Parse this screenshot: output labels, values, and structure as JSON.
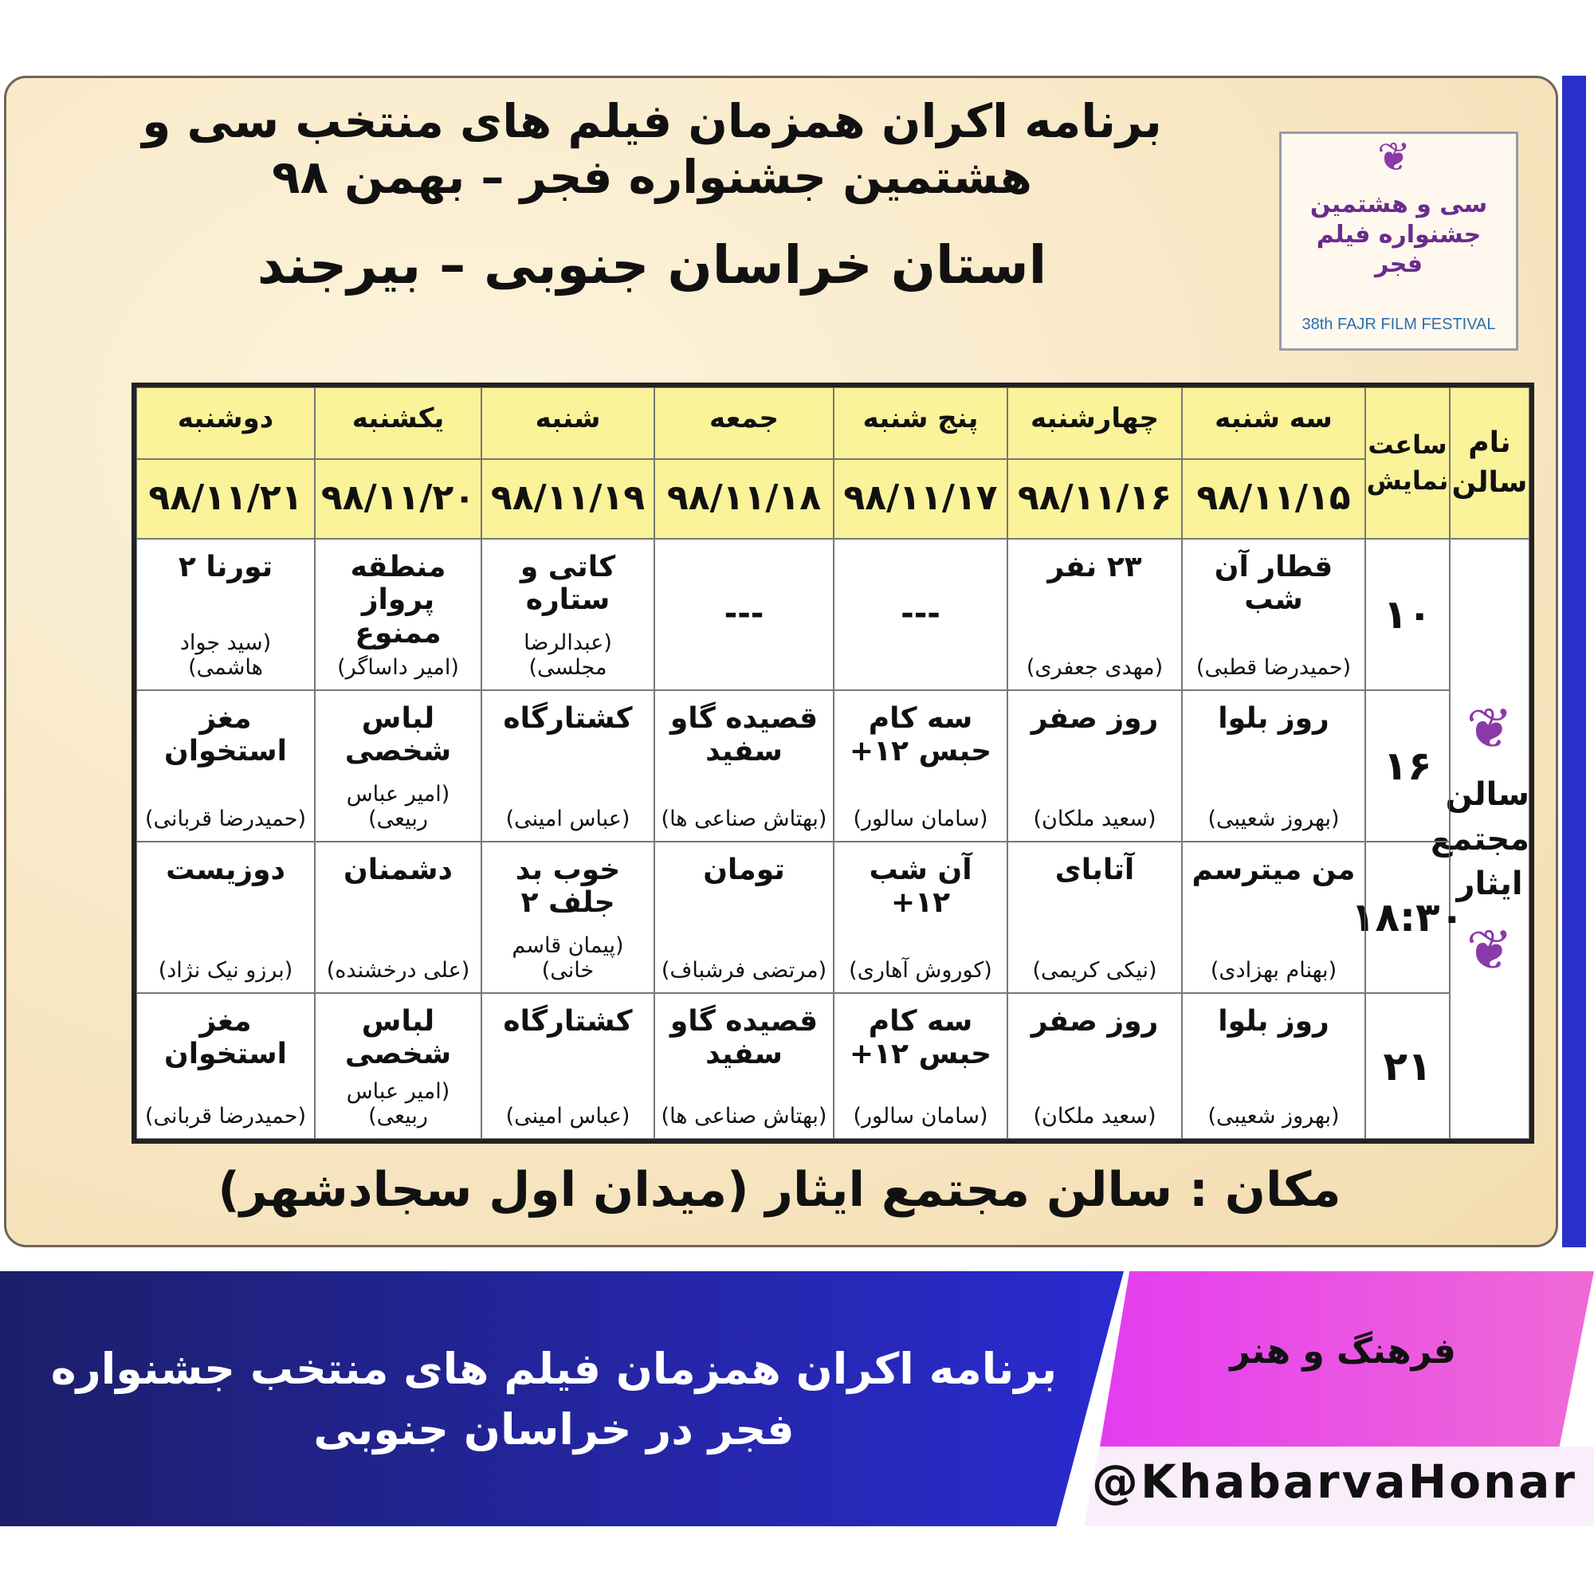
{
  "poster": {
    "title_line1": "برنامه اکران همزمان فیلم های منتخب سی و هشتمین جشنواره فجر – بهمن ۹۸",
    "title_line2": "استان خراسان جنوبی – بیرجند",
    "logo": {
      "fa": "سی و هشتمین جشنواره فیلم فجر",
      "en": "38th FAJR FILM FESTIVAL",
      "icon": "simorgh-bird-icon"
    },
    "location": "مکان : سالن مجتمع ایثار (میدان اول سجادشهر)"
  },
  "table": {
    "hall_header": "نام سالن",
    "time_header": "ساعت نمایش",
    "hall_name": "سالن مجتمع ایثار",
    "days": [
      {
        "day": "سه شنبه",
        "date": "۹۸/۱۱/۱۵"
      },
      {
        "day": "چهارشنبه",
        "date": "۹۸/۱۱/۱۶"
      },
      {
        "day": "پنج شنبه",
        "date": "۹۸/۱۱/۱۷"
      },
      {
        "day": "جمعه",
        "date": "۹۸/۱۱/۱۸"
      },
      {
        "day": "شنبه",
        "date": "۹۸/۱۱/۱۹"
      },
      {
        "day": "یکشنبه",
        "date": "۹۸/۱۱/۲۰"
      },
      {
        "day": "دوشنبه",
        "date": "۹۸/۱۱/۲۱"
      }
    ],
    "rows": [
      {
        "time": "۱۰",
        "cells": [
          {
            "film": "قطار آن شب",
            "director": "(حمیدرضا قطبی)"
          },
          {
            "film": "۲۳ نفر",
            "director": "(مهدی جعفری)"
          },
          {
            "film": "---",
            "director": ""
          },
          {
            "film": "---",
            "director": ""
          },
          {
            "film": "کاتی و ستاره",
            "director": "(عبدالرضا مجلسی)"
          },
          {
            "film": "منطقه پرواز ممنوع",
            "director": "(امیر داساگر)"
          },
          {
            "film": "تورنا ۲",
            "director": "(سید جواد هاشمی)"
          }
        ]
      },
      {
        "time": "۱۶",
        "cells": [
          {
            "film": "روز بلوا",
            "director": "(بهروز شعیبی)"
          },
          {
            "film": "روز صفر",
            "director": "(سعید ملکان)"
          },
          {
            "film": "سه کام حبس ۱۲+",
            "director": "(سامان سالور)"
          },
          {
            "film": "قصیده گاو سفید",
            "director": "(بهتاش صناعی ها)"
          },
          {
            "film": "کشتارگاه",
            "director": "(عباس امینی)"
          },
          {
            "film": "لباس شخصی",
            "director": "(امیر عباس ربیعی)"
          },
          {
            "film": "مغز استخوان",
            "director": "(حمیدرضا قربانی)"
          }
        ]
      },
      {
        "time": "۱۸:۳۰",
        "cells": [
          {
            "film": "من میترسم",
            "director": "(بهنام بهزادی)"
          },
          {
            "film": "آتابای",
            "director": "(نیکی کریمی)"
          },
          {
            "film": "آن شب ۱۲+",
            "director": "(کوروش آهاری)"
          },
          {
            "film": "تومان",
            "director": "(مرتضی فرشباف)"
          },
          {
            "film": "خوب بد جلف ۲",
            "director": "(پیمان قاسم خانی)"
          },
          {
            "film": "دشمنان",
            "director": "(علی درخشنده)"
          },
          {
            "film": "دوزیست",
            "director": "(برزو نیک نژاد)"
          }
        ]
      },
      {
        "time": "۲۱",
        "cells": [
          {
            "film": "روز بلوا",
            "director": "(بهروز شعیبی)"
          },
          {
            "film": "روز صفر",
            "director": "(سعید ملکان)"
          },
          {
            "film": "سه کام حبس ۱۲+",
            "director": "(سامان سالور)"
          },
          {
            "film": "قصیده گاو سفید",
            "director": "(بهتاش صناعی ها)"
          },
          {
            "film": "کشتارگاه",
            "director": "(عباس امینی)"
          },
          {
            "film": "لباس شخصی",
            "director": "(امیر عباس ربیعی)"
          },
          {
            "film": "مغز استخوان",
            "director": "(حمیدرضا قربانی)"
          }
        ]
      }
    ]
  },
  "banner": {
    "caption": "برنامه اکران همزمان فیلم های منتخب جشنواره فجر در خراسان جنوبی",
    "category": "فرهنگ و هنر",
    "handle": "@KhabarvaHonar",
    "colors": {
      "blue": "#2a2bd0",
      "pink": "#e43cf0",
      "header_yellow": "#fbf39a"
    }
  }
}
